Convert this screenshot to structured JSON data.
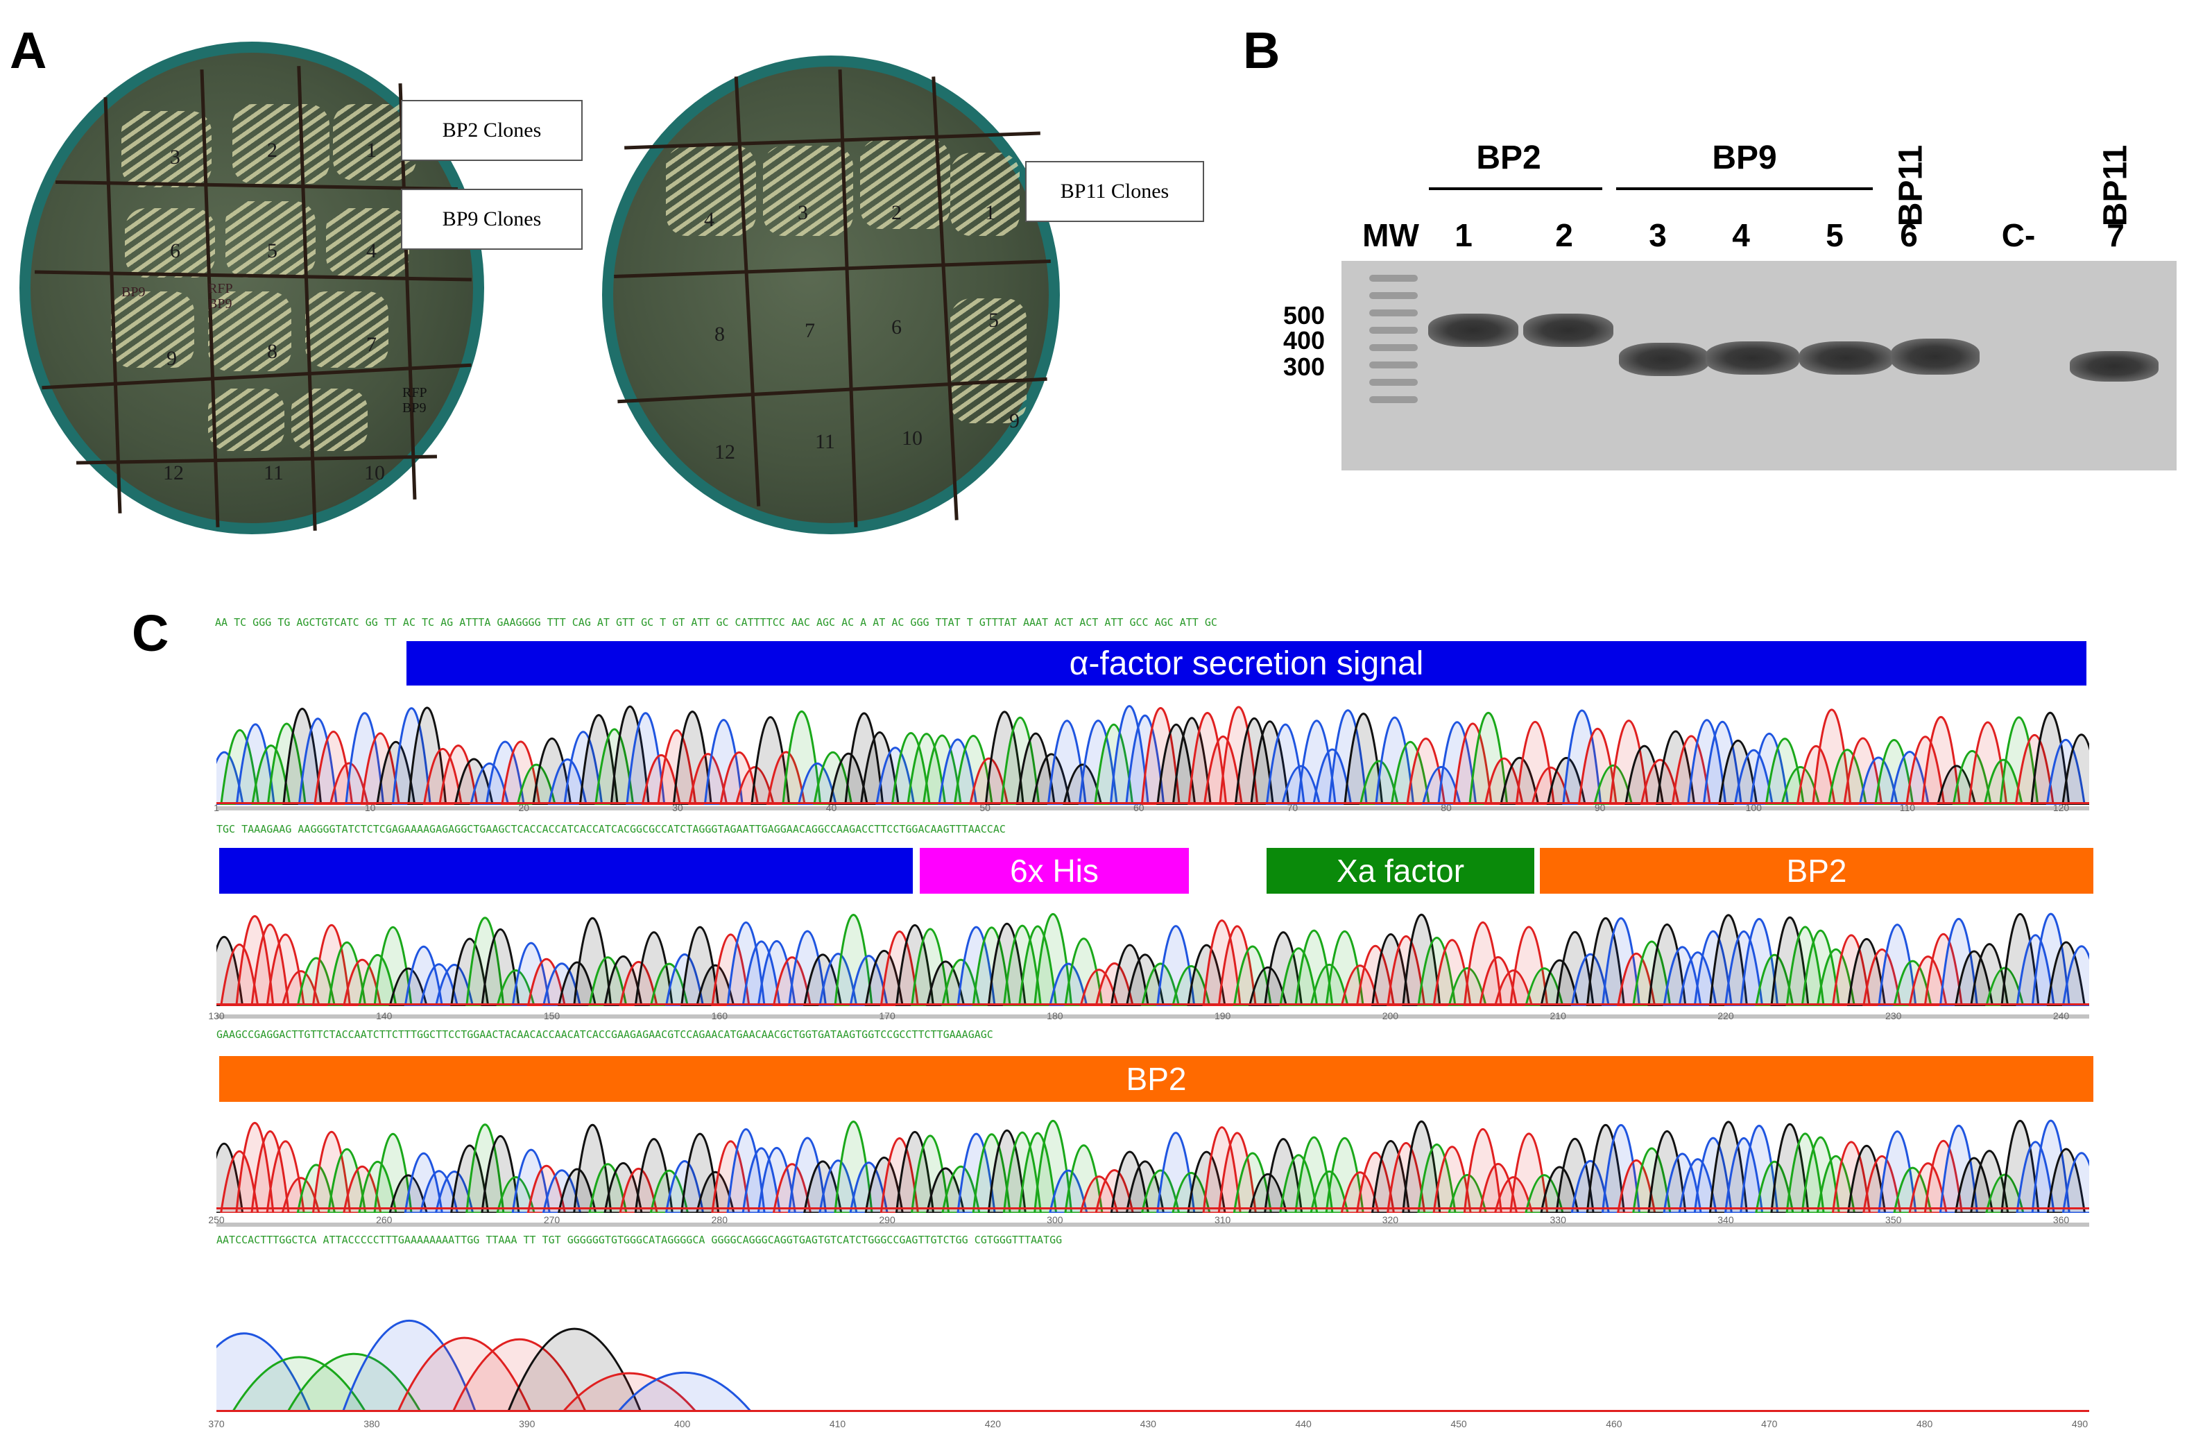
{
  "panels": {
    "a": "A",
    "b": "B",
    "c": "C"
  },
  "plate1": {
    "cells": [
      "3",
      "2",
      "1",
      "6",
      "5",
      "4",
      "9",
      "8",
      "7",
      "12",
      "11",
      "10"
    ],
    "notes": [
      "BP9",
      "RFP\nBP9",
      "RFP\nBP9"
    ]
  },
  "plate2": {
    "cells": [
      "4",
      "3",
      "2",
      "1",
      "8",
      "7",
      "6",
      "5",
      "12",
      "11",
      "10",
      "9"
    ]
  },
  "callouts": {
    "bp2": "BP2 Clones",
    "bp9": "BP9 Clones",
    "bp11": "BP11 Clones"
  },
  "gel": {
    "groups": {
      "bp2": "BP2",
      "bp9": "BP9",
      "bp11a": "BP11",
      "bp11b": "BP11"
    },
    "lanes": {
      "mw": "MW",
      "l1": "1",
      "l2": "2",
      "l3": "3",
      "l4": "4",
      "l5": "5",
      "l6": "6",
      "neg": "C-",
      "l7": "7"
    },
    "size_markers": [
      "500",
      "400",
      "300"
    ]
  },
  "sequencing": {
    "rows": [
      {
        "seq": "AA TC GGG TG AGCTGTCATC GG TT AC TC AG ATTTA GAAGGGG TTT CAG AT GTT GC T GT ATT GC CATTTTCC AAC AGC AC A AT AC GGG TTAT T GTTTAT AAAT ACT ACT ATT GCC AGC ATT GC",
        "ticks": [
          "1",
          "10",
          "20",
          "30",
          "40",
          "50",
          "60",
          "70",
          "80",
          "90",
          "100",
          "110",
          "120"
        ]
      },
      {
        "seq": "TGC TAAAGAAG AAGGGGTATCTCTCGAGAAAAGAGAGGCTGAAGCTCACCACCATCACCATCACGGCGCCATCTAGGGTAGAATTGAGGAACAGGCCAAGACCTTCCTGGACAAGTTTAACCAC",
        "ticks": [
          "130",
          "140",
          "150",
          "160",
          "170",
          "180",
          "190",
          "200",
          "210",
          "220",
          "230",
          "240"
        ]
      },
      {
        "seq": "GAAGCCGAGGACTTGTTCTACCAATCTTCTTTGGCTTCCTGGAACTACAACACCAACATCACCGAAGAGAACGTCCAGAACATGAACAACGCTGGTGATAAGTGGTCCGCCTTCTTGAAAGAGC",
        "ticks": [
          "250",
          "260",
          "270",
          "280",
          "290",
          "300",
          "310",
          "320",
          "330",
          "340",
          "350",
          "360"
        ]
      },
      {
        "seq": "AATCCACTTTGGCTCA ATTACCCCCTTTGAAAAAAAATTGG TTAAA TT TGT GGGGGGTGTGGGCATAGGGGCA GGGGCAGGGCAGGTGAGTGTCATCTGGGCCGAGTTGTCTGG CGTGGGTTTAATGG",
        "ticks": [
          "370",
          "380",
          "390",
          "400",
          "410",
          "420",
          "430",
          "440",
          "450",
          "460",
          "470",
          "480",
          "490"
        ]
      }
    ],
    "features": {
      "alpha": "α-factor secretion signal",
      "his": "6x His",
      "xa": "Xa factor",
      "bp2a": "BP2",
      "bp2b": "BP2"
    },
    "colors": {
      "blue": "#0000e8",
      "magenta": "#ff00ff",
      "green": "#0a8a0a",
      "orange": "#ff6a00"
    }
  }
}
